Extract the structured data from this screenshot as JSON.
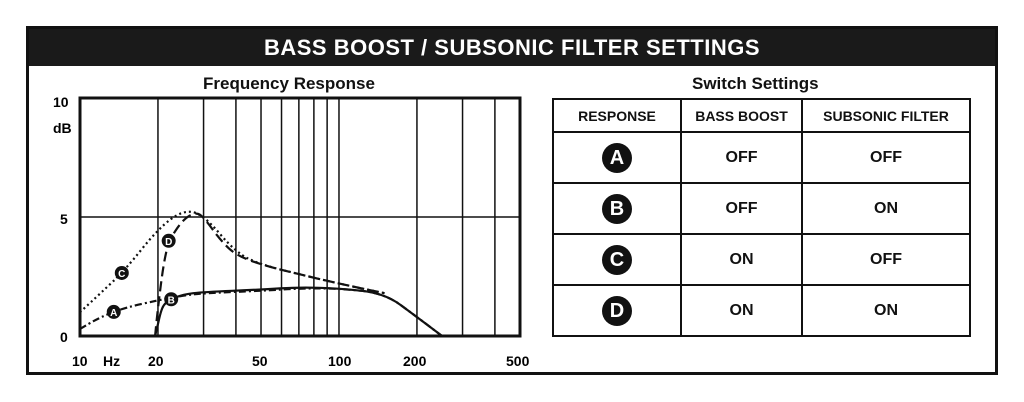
{
  "title": "BASS BOOST / SUBSONIC FILTER SETTINGS",
  "graph": {
    "title": "Frequency Response",
    "y_unit": "dB",
    "x_unit": "Hz",
    "y_ticks": [
      "10",
      "5",
      "0"
    ],
    "x_ticks": [
      "10",
      "20",
      "50",
      "100",
      "200",
      "500"
    ]
  },
  "table": {
    "title": "Switch Settings",
    "headers": [
      "RESPONSE",
      "BASS BOOST",
      "SUBSONIC FILTER"
    ],
    "rows": [
      {
        "response": "A",
        "bass_boost": "OFF",
        "subsonic_filter": "OFF"
      },
      {
        "response": "B",
        "bass_boost": "OFF",
        "subsonic_filter": "ON"
      },
      {
        "response": "C",
        "bass_boost": "ON",
        "subsonic_filter": "OFF"
      },
      {
        "response": "D",
        "bass_boost": "ON",
        "subsonic_filter": "ON"
      }
    ]
  },
  "chart_data": {
    "type": "line",
    "xscale": "log",
    "xlim": [
      10,
      500
    ],
    "ylim": [
      0,
      10
    ],
    "xlabel": "Hz",
    "ylabel": "dB",
    "series": [
      {
        "name": "A",
        "style": "dash-dot",
        "x": [
          10,
          12,
          15,
          20,
          25,
          30,
          50,
          70,
          100,
          150,
          200,
          250
        ],
        "y": [
          0.3,
          0.8,
          1.2,
          1.5,
          1.7,
          1.8,
          1.9,
          2.0,
          2.0,
          1.8,
          0.8,
          0
        ]
      },
      {
        "name": "B",
        "style": "solid",
        "x": [
          19.5,
          20,
          20.5,
          21,
          22,
          25,
          30,
          50,
          70,
          100,
          150,
          200,
          250
        ],
        "y": [
          0,
          0.5,
          1.0,
          1.3,
          1.5,
          1.75,
          1.85,
          1.95,
          2.05,
          2.0,
          1.8,
          0.8,
          0
        ]
      },
      {
        "name": "C",
        "style": "dotted",
        "x": [
          10,
          12,
          15,
          20,
          25,
          30,
          40,
          50,
          70,
          100,
          150
        ],
        "y": [
          1.0,
          1.8,
          2.8,
          4.5,
          5.3,
          5.1,
          3.5,
          3.0,
          2.6,
          2.2,
          1.8
        ]
      },
      {
        "name": "D",
        "style": "dashed",
        "x": [
          19.5,
          20,
          21,
          22,
          25,
          28,
          30,
          35,
          40,
          50,
          70,
          100,
          150
        ],
        "y": [
          0,
          1.2,
          3.0,
          4.0,
          4.9,
          5.2,
          5.0,
          4.0,
          3.4,
          3.0,
          2.6,
          2.2,
          1.8
        ]
      }
    ]
  }
}
